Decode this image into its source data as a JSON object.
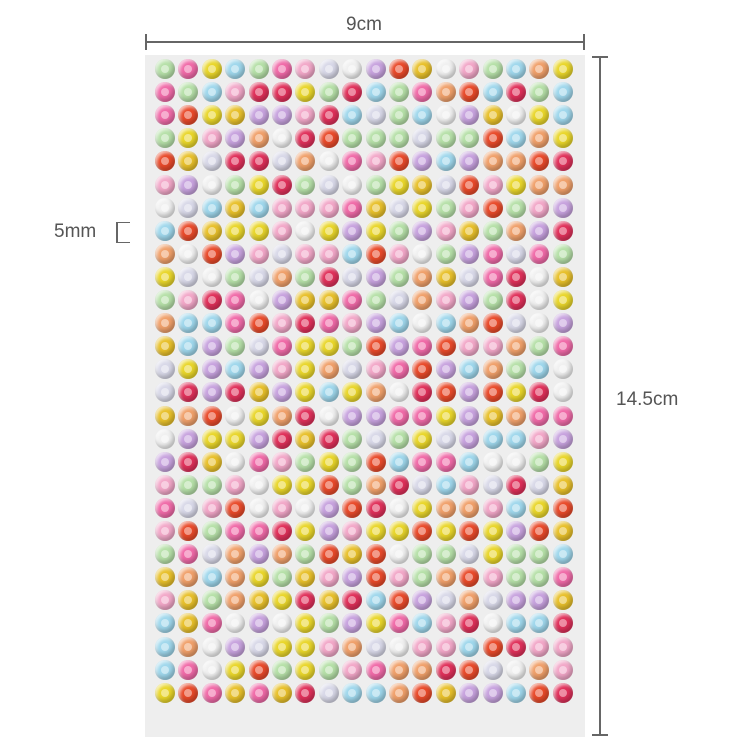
{
  "dimensions": {
    "width_label": "9cm",
    "height_label": "14.5cm",
    "gem_size_label": "5mm"
  },
  "sheet": {
    "columns": 18,
    "rows": 28,
    "gem_colors": [
      "#f2a7c8",
      "#e9d62a",
      "#9fd7ec",
      "#e94a2a",
      "#c7a2de",
      "#b6e0a8",
      "#f06aa8",
      "#f0f0f0",
      "#f0a06a",
      "#e8c02a",
      "#d8d8e8",
      "#e0305a"
    ]
  }
}
